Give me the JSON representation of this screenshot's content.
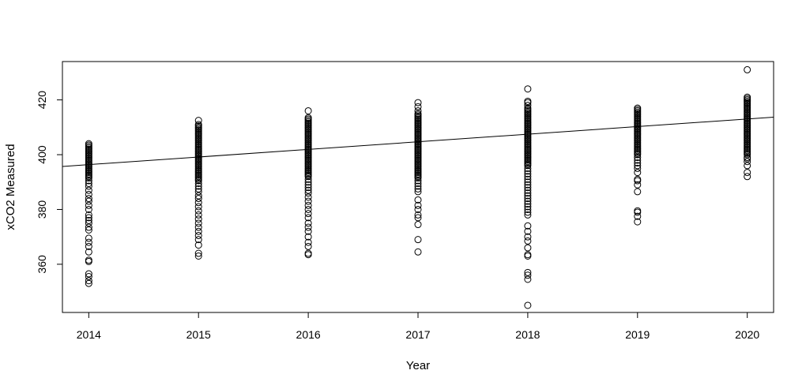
{
  "chart_data": {
    "type": "scatter",
    "title": "",
    "xlabel": "Year",
    "ylabel": "xCO2 Measured",
    "xlim": [
      2013.76,
      2020.24
    ],
    "ylim": [
      342.4,
      434.0
    ],
    "x_ticks": [
      2014,
      2015,
      2016,
      2017,
      2018,
      2019,
      2020
    ],
    "y_ticks": [
      360,
      380,
      400,
      420
    ],
    "grid": false,
    "legend": "none",
    "marker": "open-circle",
    "point_color": "#000000",
    "fit_line": {
      "type": "linear",
      "x": [
        2013.76,
        2020.24
      ],
      "y": [
        395.7,
        413.7
      ]
    },
    "series": [
      {
        "values_by_year": [
          {
            "x": 2014,
            "y": [
              353.0,
              354.0,
              355.5,
              356.5,
              361.0,
              361.5,
              364.5,
              366.5,
              368.0,
              369.5,
              372.5,
              373.5,
              375.0,
              376.0,
              377.0,
              378.0,
              380.0,
              381.5,
              383.0,
              384.0,
              385.5,
              387.0,
              388.5,
              389.5,
              390.5,
              391.5,
              392.0,
              392.5,
              393.0,
              393.5,
              394.0,
              394.5,
              395.0,
              395.5,
              396.0,
              396.5,
              397.0,
              397.5,
              398.0,
              398.5,
              399.0,
              399.5,
              400.0,
              400.5,
              401.0,
              401.5,
              402.0,
              402.5,
              403.0,
              403.5,
              404.0
            ]
          },
          {
            "x": 2015,
            "y": [
              363.0,
              364.0,
              367.0,
              369.0,
              370.5,
              372.0,
              373.5,
              375.0,
              376.5,
              378.0,
              379.5,
              381.0,
              382.5,
              384.0,
              385.0,
              386.5,
              387.5,
              388.5,
              389.5,
              390.5,
              391.0,
              391.5,
              392.0,
              392.5,
              393.0,
              393.5,
              394.0,
              394.5,
              395.0,
              395.5,
              396.0,
              396.5,
              397.0,
              397.5,
              398.0,
              398.5,
              399.0,
              399.5,
              400.0,
              400.5,
              401.0,
              401.5,
              402.0,
              402.5,
              403.0,
              403.5,
              404.0,
              404.5,
              405.0,
              405.5,
              406.0,
              406.5,
              407.0,
              407.5,
              408.0,
              408.5,
              409.0,
              409.5,
              410.0,
              410.5,
              411.0,
              412.5
            ]
          },
          {
            "x": 2016,
            "y": [
              363.5,
              364.0,
              366.5,
              368.0,
              370.0,
              372.0,
              373.5,
              375.0,
              377.0,
              378.5,
              380.0,
              381.5,
              383.0,
              384.5,
              386.0,
              387.0,
              388.0,
              389.0,
              390.0,
              391.0,
              392.0,
              392.5,
              393.0,
              393.5,
              394.0,
              394.5,
              395.0,
              395.5,
              396.0,
              396.5,
              397.0,
              397.5,
              398.0,
              398.5,
              399.0,
              399.5,
              400.0,
              400.5,
              401.0,
              401.5,
              402.0,
              402.5,
              403.0,
              403.5,
              404.0,
              404.5,
              405.0,
              405.5,
              406.0,
              406.5,
              407.0,
              407.5,
              408.0,
              408.5,
              409.0,
              409.5,
              410.0,
              410.5,
              411.0,
              411.5,
              412.0,
              412.5,
              413.0,
              413.5,
              416.0
            ]
          },
          {
            "x": 2017,
            "y": [
              364.5,
              369.0,
              374.5,
              377.0,
              378.0,
              380.0,
              381.5,
              383.5,
              386.5,
              387.5,
              388.5,
              389.5,
              390.5,
              391.5,
              392.0,
              392.5,
              393.0,
              393.5,
              394.0,
              394.5,
              395.0,
              395.5,
              396.0,
              396.5,
              397.0,
              397.5,
              398.0,
              398.5,
              399.0,
              399.5,
              400.0,
              400.5,
              401.0,
              401.5,
              402.0,
              402.5,
              403.0,
              403.5,
              404.0,
              404.5,
              405.0,
              405.5,
              406.0,
              406.5,
              407.0,
              407.5,
              408.0,
              408.5,
              409.0,
              409.5,
              410.0,
              410.5,
              411.0,
              411.5,
              412.0,
              412.5,
              413.0,
              413.5,
              414.0,
              414.5,
              415.0,
              416.0,
              417.5,
              419.0
            ]
          },
          {
            "x": 2018,
            "y": [
              345.0,
              354.5,
              356.0,
              357.0,
              363.0,
              363.5,
              366.0,
              368.5,
              370.0,
              372.0,
              374.0,
              378.0,
              379.0,
              380.0,
              381.0,
              382.0,
              383.0,
              384.0,
              385.0,
              386.0,
              387.0,
              388.0,
              389.0,
              390.0,
              391.0,
              392.0,
              393.0,
              394.0,
              395.0,
              396.0,
              396.5,
              397.0,
              397.5,
              398.0,
              398.5,
              399.0,
              399.5,
              400.0,
              400.5,
              401.0,
              401.5,
              402.0,
              402.5,
              403.0,
              403.5,
              404.0,
              404.5,
              405.0,
              405.5,
              406.0,
              406.5,
              407.0,
              407.5,
              408.0,
              408.5,
              409.0,
              409.5,
              410.0,
              410.5,
              411.0,
              411.5,
              412.0,
              412.5,
              413.0,
              413.5,
              414.0,
              414.5,
              415.0,
              415.5,
              416.0,
              416.5,
              417.0,
              418.0,
              419.0,
              419.5,
              424.0
            ]
          },
          {
            "x": 2019,
            "y": [
              375.5,
              377.5,
              379.0,
              379.5,
              386.5,
              389.0,
              390.5,
              391.0,
              393.5,
              395.0,
              396.0,
              397.0,
              398.0,
              399.0,
              400.0,
              400.5,
              401.0,
              401.5,
              402.0,
              402.5,
              403.0,
              403.5,
              404.0,
              404.5,
              405.0,
              405.5,
              406.0,
              406.5,
              407.0,
              407.5,
              408.0,
              408.5,
              409.0,
              409.5,
              410.0,
              410.5,
              411.0,
              411.5,
              412.0,
              412.5,
              413.0,
              413.5,
              414.0,
              414.5,
              415.0,
              415.5,
              416.0,
              416.5,
              417.0
            ]
          },
          {
            "x": 2020,
            "y": [
              392.0,
              393.5,
              396.0,
              397.5,
              398.5,
              399.0,
              400.0,
              400.5,
              401.0,
              401.5,
              402.0,
              402.5,
              403.0,
              403.5,
              404.0,
              404.5,
              405.0,
              405.5,
              406.0,
              406.5,
              407.0,
              407.5,
              408.0,
              408.5,
              409.0,
              409.5,
              410.0,
              410.5,
              411.0,
              411.5,
              412.0,
              412.5,
              413.0,
              413.5,
              414.0,
              414.5,
              415.0,
              415.5,
              416.0,
              416.5,
              417.0,
              417.5,
              418.0,
              418.5,
              419.0,
              419.5,
              420.0,
              420.5,
              421.0,
              431.0
            ]
          }
        ]
      }
    ]
  }
}
